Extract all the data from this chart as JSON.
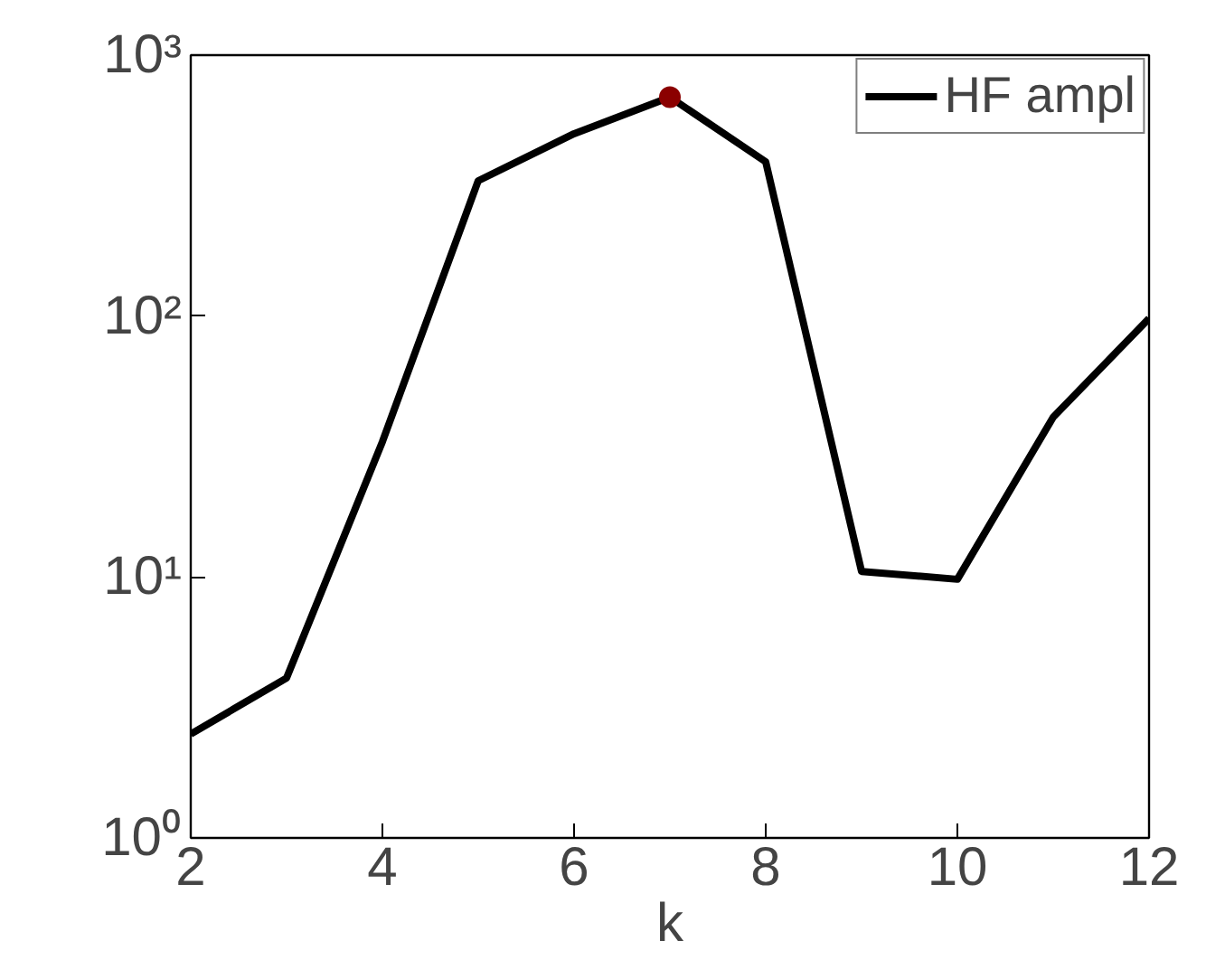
{
  "chart_data": {
    "type": "line",
    "xlabel": "k",
    "log": "y",
    "legend": "top right",
    "grid": false,
    "xlim": [
      2,
      12
    ],
    "xticks": [
      2,
      4,
      6,
      8,
      10,
      12
    ],
    "ylim": [
      1,
      1000
    ],
    "yticks": [
      {
        "value": 1,
        "label": "10⁰"
      },
      {
        "value": 10,
        "label": "10¹"
      },
      {
        "value": 100,
        "label": "10²"
      },
      {
        "value": 1000,
        "label": "10³"
      }
    ],
    "series": [
      {
        "name": "HF ampl",
        "type": "line",
        "color": "#000000",
        "x": [
          2,
          3,
          4,
          5,
          6,
          7,
          8,
          9,
          10,
          11,
          12
        ],
        "values": [
          2.5,
          4.1,
          33,
          330,
          500,
          690,
          390,
          10.5,
          9.8,
          41,
          98
        ],
        "marker": "none"
      },
      {
        "type": "scatter",
        "color": "#8b0000",
        "x": [
          7
        ],
        "values": [
          690
        ],
        "marker": "circle"
      }
    ]
  }
}
